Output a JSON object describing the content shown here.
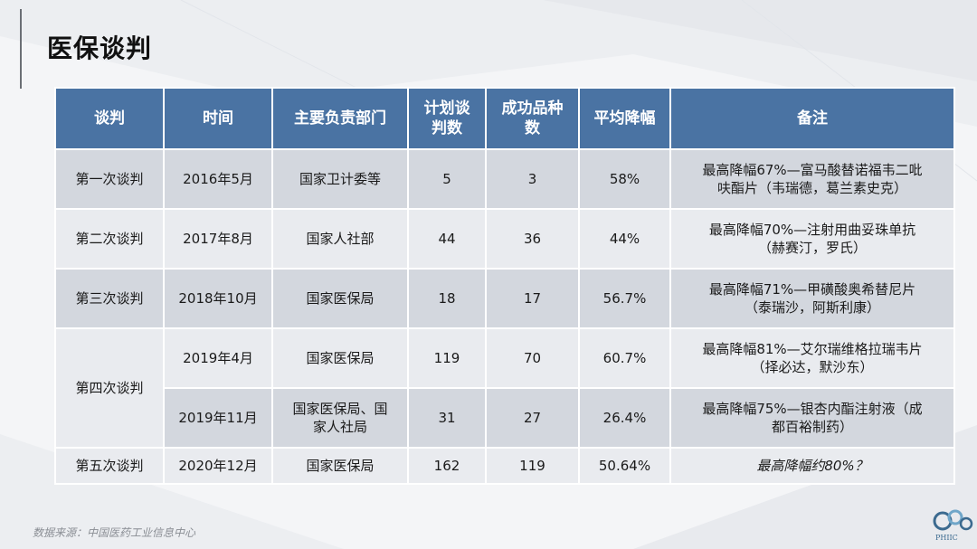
{
  "page": {
    "title": "医保谈判",
    "source": "数据来源：中国医药工业信息中心",
    "logo_text": "PHIIC"
  },
  "table": {
    "headers": [
      "谈判",
      "时间",
      "主要负责部门",
      "计划谈\n判数",
      "成功品种\n数",
      "平均降幅",
      "备注"
    ],
    "rows": [
      {
        "round": "第一次谈判",
        "time": "2016年5月",
        "dept": "国家卫计委等",
        "planned": "5",
        "success": "3",
        "avg_drop": "58%",
        "note": "最高降幅67%—富马酸替诺福韦二吡\n呋酯片（韦瑞德，葛兰素史克）"
      },
      {
        "round": "第二次谈判",
        "time": "2017年8月",
        "dept": "国家人社部",
        "planned": "44",
        "success": "36",
        "avg_drop": "44%",
        "note": "最高降幅70%—注射用曲妥珠单抗\n（赫赛汀，罗氏）"
      },
      {
        "round": "第三次谈判",
        "time": "2018年10月",
        "dept": "国家医保局",
        "planned": "18",
        "success": "17",
        "avg_drop": "56.7%",
        "note": "最高降幅71%—甲磺酸奥希替尼片\n（泰瑞沙，阿斯利康）"
      },
      {
        "round": "第四次谈判",
        "time": "2019年4月",
        "dept": "国家医保局",
        "planned": "119",
        "success": "70",
        "avg_drop": "60.7%",
        "note": "最高降幅81%—艾尔瑞维格拉瑞韦片\n（择必达，默沙东）"
      },
      {
        "round": "",
        "time": "2019年11月",
        "dept": "国家医保局、国\n家人社局",
        "planned": "31",
        "success": "27",
        "avg_drop": "26.4%",
        "note": "最高降幅75%—银杏内酯注射液（成\n都百裕制药）"
      },
      {
        "round": "第五次谈判",
        "time": "2020年12月",
        "dept": "国家医保局",
        "planned": "162",
        "success": "119",
        "avg_drop": "50.64%",
        "note": "最高降幅约80%？"
      }
    ]
  },
  "colors": {
    "header_bg": "#4a73a3",
    "row_dark": "#d3d7de",
    "row_light": "#e9ebef",
    "background": "#f4f5f7"
  }
}
